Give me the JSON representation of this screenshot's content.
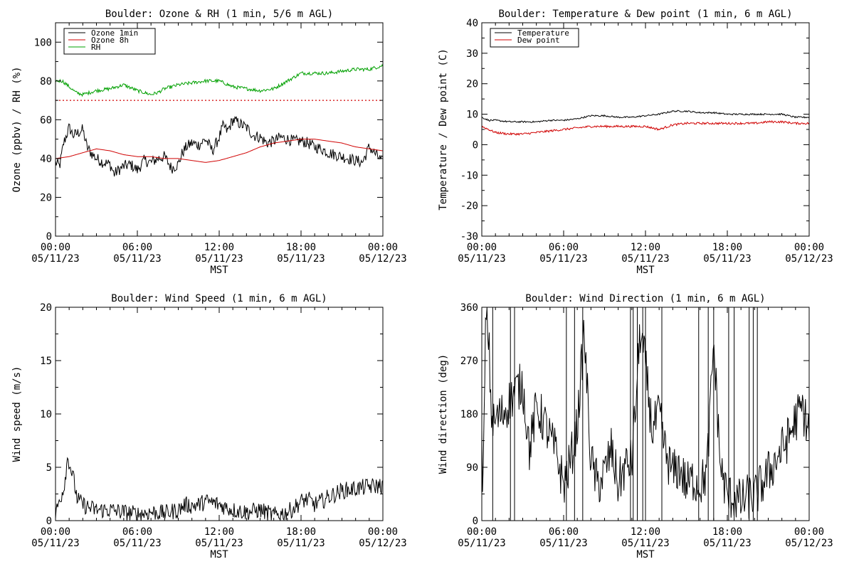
{
  "chart_data": [
    {
      "type": "line",
      "title": "Boulder: Ozone & RH (1 min, 5/6 m AGL)",
      "xlabel": "MST",
      "ylabel": "Ozone (ppbv) / RH (%)",
      "ylim": [
        0,
        110
      ],
      "yticks": [
        "0",
        "20",
        "40",
        "60",
        "80",
        "100"
      ],
      "yticks_v": [
        0,
        20,
        40,
        60,
        80,
        100
      ],
      "xlim": [
        0,
        24
      ],
      "xticks": [
        {
          "t": "00:00",
          "d": "05/11/23"
        },
        {
          "t": "06:00",
          "d": "05/11/23"
        },
        {
          "t": "12:00",
          "d": "05/11/23"
        },
        {
          "t": "18:00",
          "d": "05/11/23"
        },
        {
          "t": "00:00",
          "d": "05/12/23"
        }
      ],
      "legend_position": "top-left",
      "reference_line": {
        "y": 70,
        "color": "#d00000",
        "style": "dotted"
      },
      "series": [
        {
          "name": "Ozone 1min",
          "color": "#000000",
          "x": [
            0,
            0.3,
            0.6,
            1,
            1.3,
            1.6,
            2,
            2.3,
            2.6,
            3,
            3.5,
            4,
            4.3,
            4.6,
            5,
            5.5,
            6,
            6.5,
            7,
            7.5,
            8,
            8.5,
            9,
            9.3,
            9.6,
            10,
            10.5,
            11,
            11.5,
            12,
            12.3,
            12.6,
            13,
            13.5,
            14,
            14.5,
            15,
            15.5,
            16,
            16.5,
            17,
            17.5,
            18,
            18.5,
            19,
            19.5,
            20,
            20.5,
            21,
            21.5,
            22,
            22.5,
            23,
            23.5,
            24
          ],
          "y": [
            38,
            36,
            48,
            56,
            52,
            53,
            55,
            46,
            43,
            40,
            38,
            37,
            32,
            34,
            36,
            37,
            34,
            39,
            38,
            40,
            41,
            35,
            37,
            43,
            46,
            48,
            47,
            50,
            44,
            51,
            57,
            54,
            60,
            58,
            56,
            52,
            51,
            48,
            49,
            51,
            50,
            49,
            49,
            48,
            46,
            45,
            43,
            42,
            41,
            40,
            39,
            38,
            46,
            42,
            38
          ],
          "noise": 3
        },
        {
          "name": "Ozone 8h",
          "color": "#d00000",
          "x": [
            0,
            1,
            2,
            3,
            4,
            5,
            6,
            7,
            8,
            9,
            10,
            11,
            12,
            13,
            14,
            15,
            16,
            17,
            18,
            19,
            20,
            21,
            22,
            23,
            24
          ],
          "y": [
            40,
            41,
            43,
            45,
            44,
            42,
            41,
            41,
            40,
            40,
            39,
            38,
            39,
            41,
            43,
            46,
            48,
            49,
            50,
            50,
            49,
            48,
            46,
            45,
            44
          ],
          "noise": 0
        },
        {
          "name": "RH",
          "color": "#00a000",
          "x": [
            0,
            0.5,
            1,
            1.5,
            2,
            3,
            4,
            5,
            6,
            7,
            7.5,
            8,
            9,
            10,
            11,
            12,
            13,
            14,
            15,
            16,
            17,
            18,
            19,
            20,
            21,
            22,
            23,
            24
          ],
          "y": [
            80,
            80,
            77,
            74,
            73,
            75,
            76,
            78,
            75,
            73,
            74,
            76,
            78,
            79,
            80,
            80,
            77,
            76,
            75,
            76,
            80,
            84,
            84,
            84,
            85,
            86,
            86,
            88
          ],
          "noise": 0.9
        }
      ]
    },
    {
      "type": "line",
      "title": "Boulder: Temperature & Dew point (1 min, 6 m AGL)",
      "xlabel": "MST",
      "ylabel": "Temperature / Dew point (C)",
      "ylim": [
        -30,
        40
      ],
      "yticks": [
        "-30",
        "-20",
        "-10",
        "0",
        "10",
        "20",
        "30",
        "40"
      ],
      "yticks_v": [
        -30,
        -20,
        -10,
        0,
        10,
        20,
        30,
        40
      ],
      "xlim": [
        0,
        24
      ],
      "xticks": [
        {
          "t": "00:00",
          "d": "05/11/23"
        },
        {
          "t": "06:00",
          "d": "05/11/23"
        },
        {
          "t": "12:00",
          "d": "05/11/23"
        },
        {
          "t": "18:00",
          "d": "05/11/23"
        },
        {
          "t": "00:00",
          "d": "05/12/23"
        }
      ],
      "legend_position": "top-left",
      "series": [
        {
          "name": "Temperature",
          "color": "#000000",
          "x": [
            0,
            0.5,
            1,
            2,
            3,
            4,
            5,
            6,
            7,
            8,
            9,
            10,
            11,
            12,
            13,
            14,
            15,
            16,
            17,
            18,
            19,
            20,
            21,
            22,
            23,
            24
          ],
          "y": [
            9,
            8,
            8,
            7.5,
            7.5,
            7.5,
            8,
            8,
            8.5,
            9.5,
            9.5,
            9,
            9,
            9.5,
            10,
            11,
            11,
            10.5,
            10.5,
            10,
            10,
            10,
            10,
            10,
            9,
            9
          ],
          "noise": 0.25
        },
        {
          "name": "Dew point",
          "color": "#d00000",
          "x": [
            0,
            0.5,
            1,
            2,
            3,
            4,
            5,
            6,
            7,
            8,
            9,
            10,
            11,
            12,
            13,
            14,
            15,
            16,
            17,
            18,
            19,
            20,
            21,
            22,
            23,
            24
          ],
          "y": [
            6,
            5,
            4,
            3.5,
            3.5,
            4,
            4.5,
            5,
            5.5,
            6,
            6,
            6,
            6,
            6,
            5,
            6.5,
            7,
            7,
            7,
            7,
            7,
            7,
            7.5,
            7.5,
            7,
            7
          ],
          "noise": 0.35
        }
      ]
    },
    {
      "type": "line",
      "title": "Boulder: Wind Speed (1 min, 6 m AGL)",
      "xlabel": "MST",
      "ylabel": "Wind speed (m/s)",
      "ylim": [
        0,
        20
      ],
      "yticks": [
        "0",
        "5",
        "10",
        "15",
        "20"
      ],
      "yticks_v": [
        0,
        5,
        10,
        15,
        20
      ],
      "xlim": [
        0,
        24
      ],
      "xticks": [
        {
          "t": "00:00",
          "d": "05/11/23"
        },
        {
          "t": "06:00",
          "d": "05/11/23"
        },
        {
          "t": "12:00",
          "d": "05/11/23"
        },
        {
          "t": "18:00",
          "d": "05/11/23"
        },
        {
          "t": "00:00",
          "d": "05/12/23"
        }
      ],
      "series": [
        {
          "name": "",
          "color": "#000000",
          "x": [
            0,
            0.3,
            0.6,
            0.9,
            1.1,
            1.3,
            1.6,
            2,
            2.5,
            3,
            4,
            5,
            6,
            7,
            8,
            9,
            9.5,
            10,
            10.5,
            11,
            11.5,
            12,
            13,
            14,
            15,
            16,
            17,
            17.5,
            18,
            18.5,
            19,
            19.5,
            20,
            20.5,
            21,
            22,
            23,
            24
          ],
          "y": [
            0.5,
            2,
            3,
            6,
            5,
            4,
            2,
            1.5,
            1.2,
            1,
            1,
            0.8,
            0.6,
            0.8,
            0.7,
            1,
            1.5,
            1.4,
            1.5,
            1.8,
            1.7,
            1.5,
            1,
            0.8,
            1,
            0.5,
            0.8,
            1.2,
            1.8,
            2,
            1.5,
            1.8,
            2.2,
            2.5,
            2.8,
            3,
            3.2,
            3.3
          ],
          "noise": 0.8
        }
      ]
    },
    {
      "type": "line",
      "title": "Boulder: Wind Direction (1 min, 6 m AGL)",
      "xlabel": "MST",
      "ylabel": "Wind direction (deg)",
      "ylim": [
        0,
        360
      ],
      "yticks": [
        "0",
        "90",
        "180",
        "270",
        "360"
      ],
      "yticks_v": [
        0,
        90,
        180,
        270,
        360
      ],
      "xlim": [
        0,
        24
      ],
      "xticks": [
        {
          "t": "00:00",
          "d": "05/11/23"
        },
        {
          "t": "06:00",
          "d": "05/11/23"
        },
        {
          "t": "12:00",
          "d": "05/11/23"
        },
        {
          "t": "18:00",
          "d": "05/11/23"
        },
        {
          "t": "00:00",
          "d": "05/12/23"
        }
      ],
      "series": [
        {
          "name": "",
          "color": "#000000",
          "x": [
            0,
            0.1,
            0.3,
            0.5,
            0.7,
            0.9,
            1,
            1.5,
            2,
            2.5,
            3,
            3.5,
            4,
            4.5,
            5,
            5.5,
            6,
            6.5,
            7,
            7.5,
            8,
            8.5,
            9,
            9.5,
            10,
            10.5,
            11,
            11.3,
            11.6,
            12,
            12.5,
            13,
            13.5,
            14,
            14.5,
            15,
            15.5,
            16,
            16.5,
            17,
            17.5,
            18,
            18.5,
            19,
            19.5,
            20,
            20.5,
            21,
            21.5,
            22,
            22.5,
            23,
            23.5,
            24
          ],
          "y": [
            120,
            60,
            350,
            310,
            180,
            160,
            170,
            180,
            200,
            220,
            230,
            120,
            190,
            170,
            140,
            110,
            60,
            100,
            160,
            320,
            100,
            60,
            80,
            120,
            60,
            90,
            100,
            200,
            320,
            260,
            150,
            180,
            110,
            80,
            90,
            60,
            70,
            60,
            80,
            300,
            90,
            40,
            40,
            30,
            40,
            40,
            60,
            80,
            100,
            120,
            140,
            170,
            190,
            150
          ],
          "noise": 40
        },
        {
          "name": "",
          "color": "#000000",
          "spikes": [
            0.8,
            2.1,
            2.4,
            6.2,
            6.8,
            7.4,
            10.9,
            11.1,
            11.4,
            11.8,
            12.0,
            13.2,
            15.9,
            16.6,
            17.0,
            18.1,
            18.5,
            19.6,
            19.9,
            20.2
          ],
          "noise": 0
        }
      ]
    }
  ]
}
